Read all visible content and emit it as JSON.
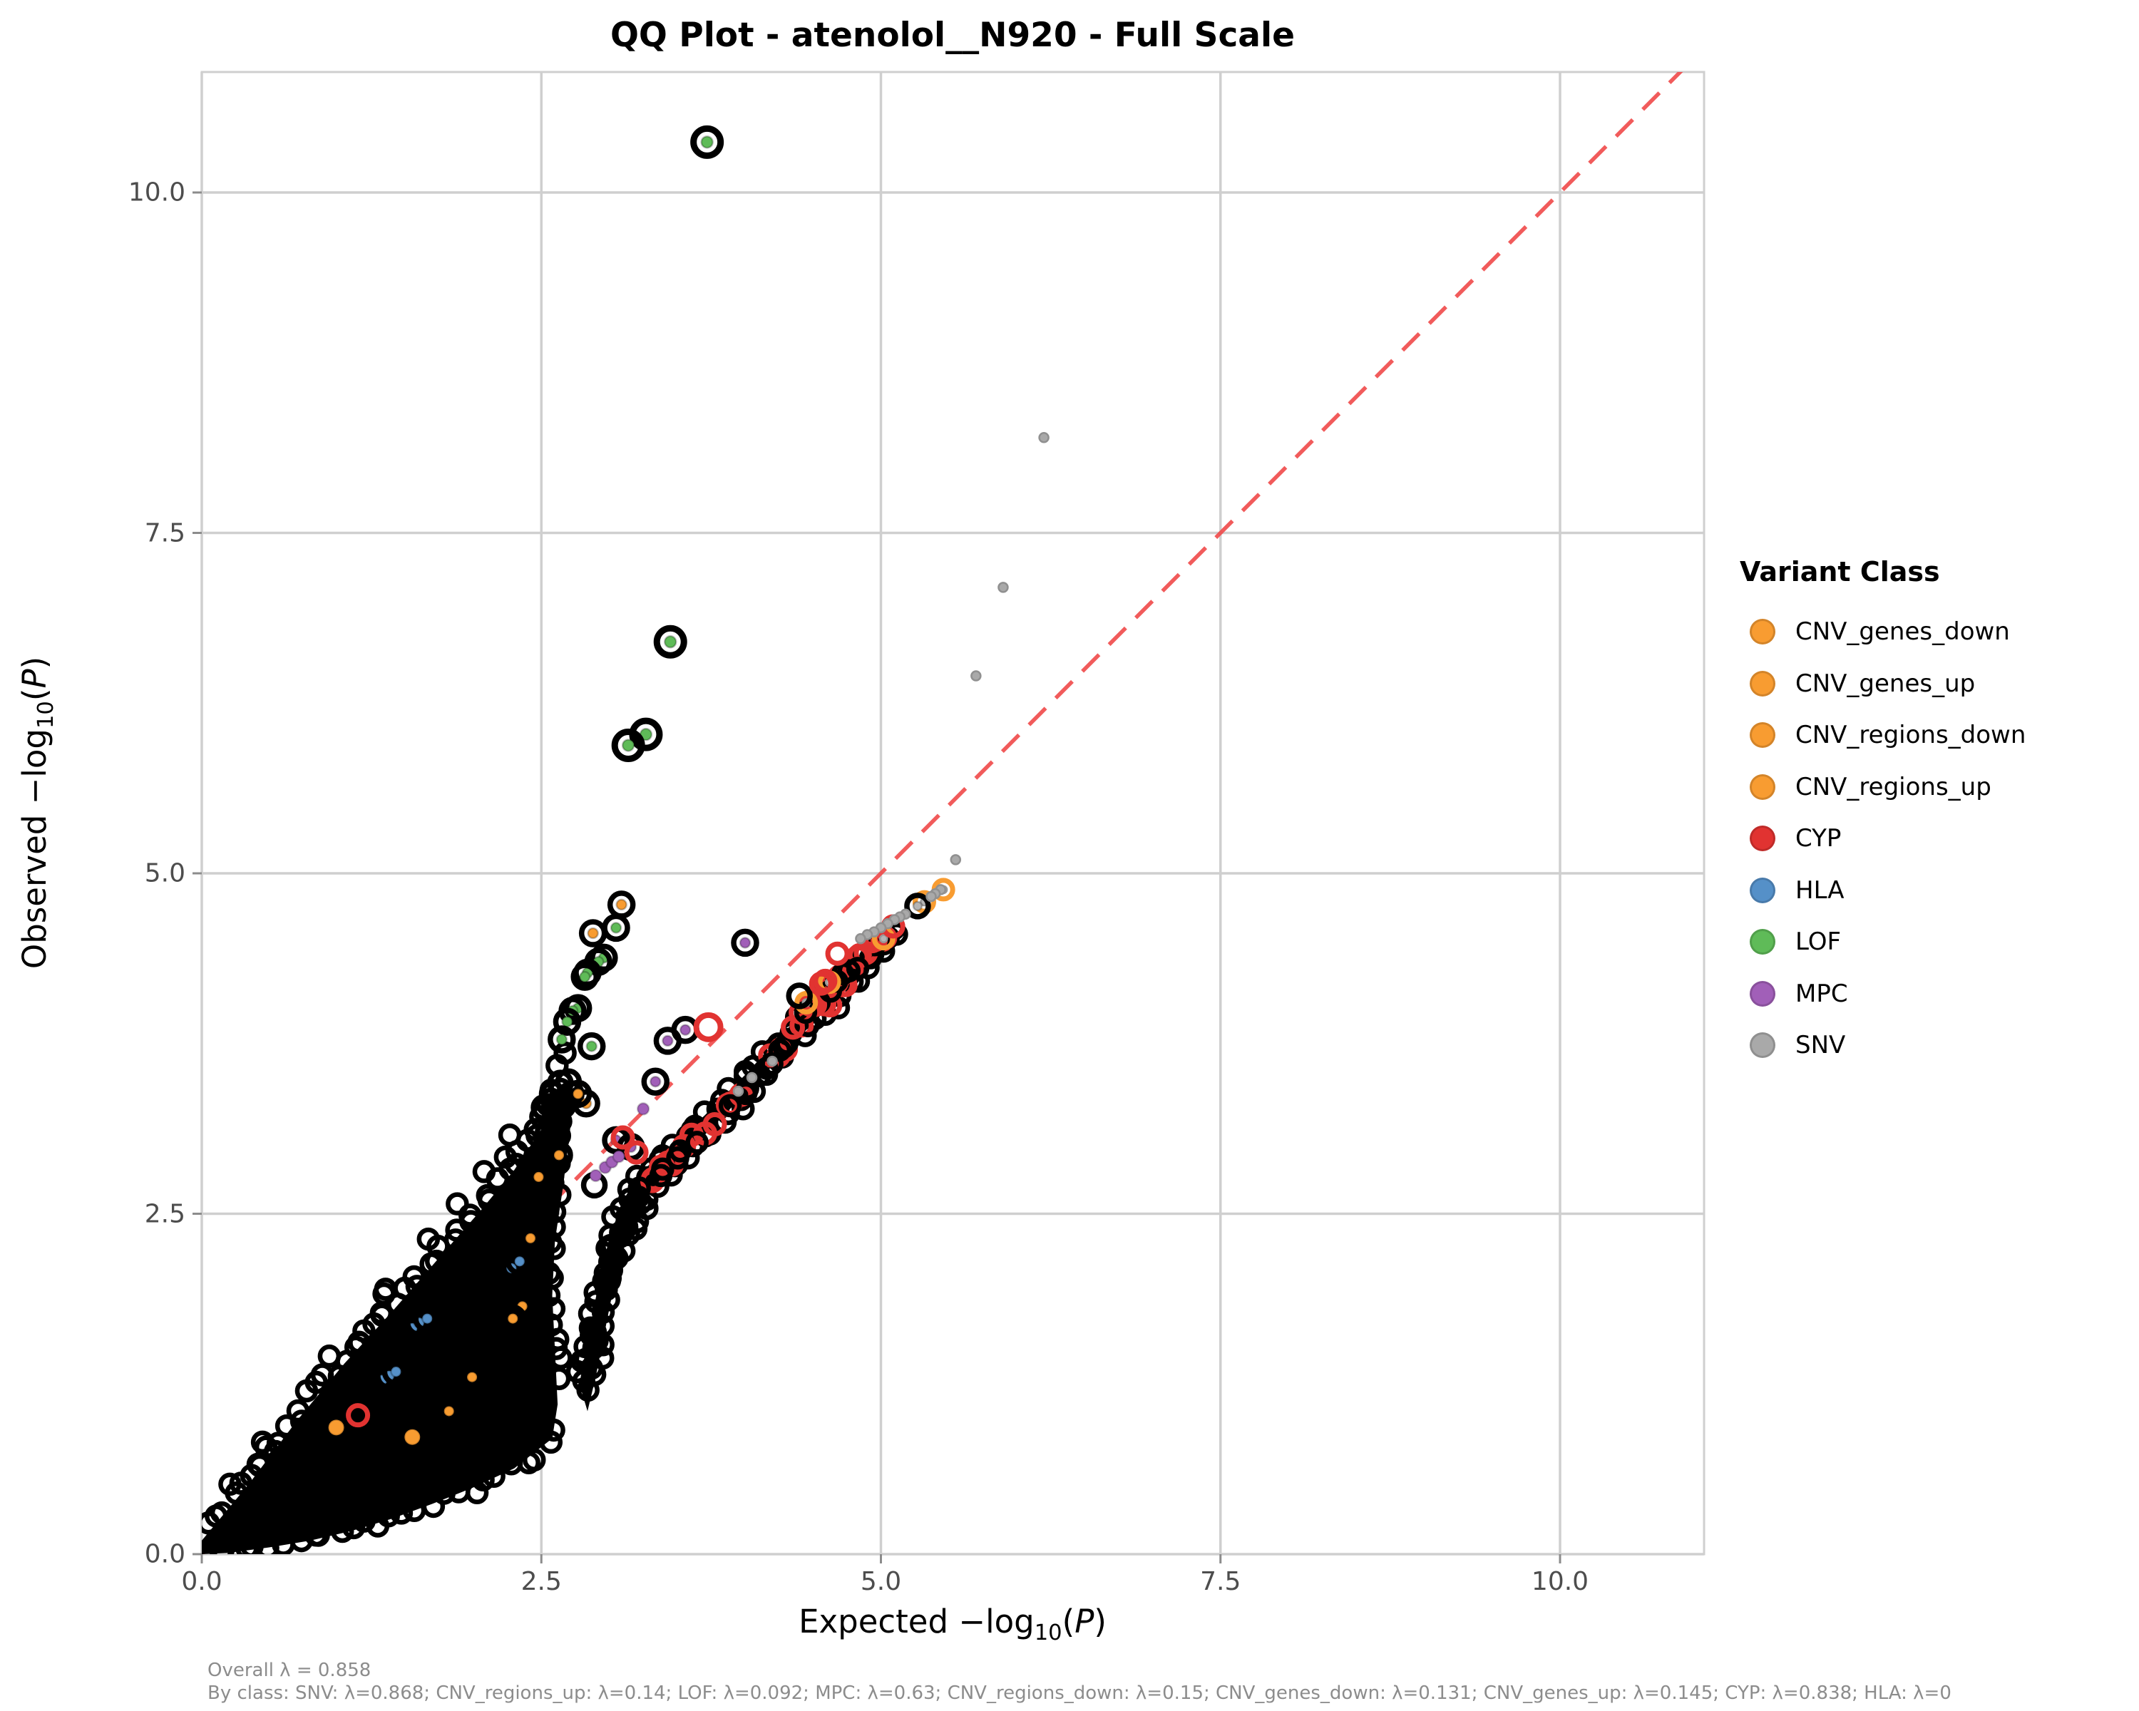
{
  "title": "QQ Plot - atenolol__N920 - Full Scale",
  "axes": {
    "xlabel_pre": "Expected ",
    "ylabel_pre": "Observed ",
    "log_word": "−log",
    "log_sub": "10",
    "paren_open": "(",
    "paren_var": "P",
    "paren_close": ")"
  },
  "legend": {
    "title": "Variant Class",
    "items": [
      {
        "label": "CNV_genes_down",
        "color": "#F89C31"
      },
      {
        "label": "CNV_genes_up",
        "color": "#F89C31"
      },
      {
        "label": "CNV_regions_down",
        "color": "#F89C31"
      },
      {
        "label": "CNV_regions_up",
        "color": "#F89C31"
      },
      {
        "label": "CYP",
        "color": "#E13331"
      },
      {
        "label": "HLA",
        "color": "#5590C8"
      },
      {
        "label": "LOF",
        "color": "#5FBB58"
      },
      {
        "label": "MPC",
        "color": "#A15FB8"
      },
      {
        "label": "SNV",
        "color": "#A9A9A9"
      }
    ]
  },
  "annotations": {
    "overall": "Overall λ = 0.858",
    "by_class": "By class: SNV: λ=0.868; CNV_regions_up: λ=0.14; LOF: λ=0.092; MPC: λ=0.63; CNV_regions_down: λ=0.15; CNV_genes_down: λ=0.131; CNV_genes_up: λ=0.145; CYP: λ=0.838; HLA: λ=0"
  },
  "chart_data": {
    "type": "scatter",
    "title": "QQ Plot - atenolol__N920 - Full Scale",
    "xlabel": "Expected -log10(P)",
    "ylabel": "Observed -log10(P)",
    "x_range": [
      0,
      11.06
    ],
    "y_range": [
      0,
      10.88
    ],
    "x_ticks": [
      0,
      2.5,
      5,
      7.5,
      10
    ],
    "y_ticks": [
      0,
      2.5,
      5,
      7.5,
      10
    ],
    "x_tick_labels": [
      "0.0",
      "2.5",
      "5.0",
      "7.5",
      "10.0"
    ],
    "y_tick_labels": [
      "0.0",
      "2.5",
      "5.0",
      "7.5",
      "10.0"
    ],
    "grid": true,
    "identity_line": {
      "slope": 1,
      "style": "dashed",
      "color": "#F04A4A"
    },
    "overall_lambda": 0.858,
    "lambda_by_class": {
      "SNV": 0.868,
      "CNV_regions_up": 0.14,
      "LOF": 0.092,
      "MPC": 0.63,
      "CNV_regions_down": 0.15,
      "CNV_genes_down": 0.131,
      "CNV_genes_up": 0.145,
      "CYP": 0.838,
      "HLA": null
    },
    "colors": {
      "CNV": "#F89C31",
      "CYP": "#E13331",
      "HLA": "#5590C8",
      "LOF": "#5FBB58",
      "MPC": "#A15FB8",
      "SNV": "#A9A9A9",
      "bulk": "#000000",
      "grid": "#CFCFCF",
      "diag": "#F04A4A"
    },
    "outliers": {
      "LOF_big": [
        [
          3.72,
          10.37
        ],
        [
          3.45,
          6.7
        ],
        [
          3.27,
          6.02
        ],
        [
          3.14,
          5.94
        ]
      ],
      "LOF_ring": [
        [
          3.05,
          4.6
        ],
        [
          2.96,
          4.38
        ],
        [
          2.92,
          4.35
        ],
        [
          2.84,
          4.27
        ],
        [
          2.82,
          4.24
        ],
        [
          2.77,
          4.01
        ],
        [
          2.73,
          3.99
        ],
        [
          2.69,
          3.91
        ],
        [
          2.65,
          3.78
        ],
        [
          2.87,
          3.73
        ]
      ],
      "CNV_ring_black": [
        [
          3.09,
          4.77
        ],
        [
          2.88,
          4.56
        ],
        [
          2.83,
          3.31
        ],
        [
          2.77,
          3.38
        ],
        [
          2.63,
          2.93
        ],
        [
          2.48,
          2.77
        ],
        [
          2.42,
          2.32
        ],
        [
          2.36,
          1.82
        ],
        [
          2.29,
          1.73
        ],
        [
          1.99,
          1.3
        ],
        [
          1.82,
          1.05
        ]
      ],
      "CNV_ring_open": [
        [
          5.46,
          4.88
        ],
        [
          5.32,
          4.79
        ],
        [
          4.45,
          4.05
        ],
        [
          4.62,
          4.2
        ],
        [
          5.02,
          4.52
        ]
      ],
      "CNV_dot": [
        [
          0.99,
          0.93
        ],
        [
          1.55,
          0.86
        ]
      ],
      "MPC_ring": [
        [
          4.0,
          4.49
        ],
        [
          3.56,
          3.85
        ],
        [
          3.43,
          3.77
        ],
        [
          3.34,
          3.47
        ],
        [
          3.05,
          3.04
        ],
        [
          3.16,
          2.99
        ]
      ],
      "MPC_dot": [
        [
          3.25,
          3.27
        ],
        [
          2.97,
          2.84
        ],
        [
          3.02,
          2.88
        ],
        [
          3.07,
          2.92
        ],
        [
          2.9,
          2.78
        ]
      ],
      "CYP_ring": [
        [
          3.73,
          3.87
        ],
        [
          5.09,
          4.61
        ],
        [
          3.1,
          3.06
        ],
        [
          3.2,
          2.95
        ],
        [
          4.68,
          4.41
        ],
        [
          4.59,
          4.21
        ],
        [
          4.56,
          4.19
        ],
        [
          1.15,
          1.02
        ]
      ],
      "CYP_hidden": [
        [
          2.35,
          2.6
        ],
        [
          2.4,
          2.42
        ],
        [
          2.43,
          2.1
        ]
      ],
      "HLA_ring": [
        [
          1.33,
          1.28
        ],
        [
          1.38,
          1.31
        ],
        [
          1.43,
          1.34
        ],
        [
          1.55,
          1.66
        ],
        [
          1.6,
          1.7
        ],
        [
          1.66,
          1.73
        ],
        [
          2.28,
          2.1
        ],
        [
          2.34,
          2.15
        ]
      ],
      "SNV_dot": [
        [
          6.2,
          8.2
        ],
        [
          5.9,
          7.1
        ],
        [
          5.7,
          6.45
        ],
        [
          5.55,
          5.1
        ],
        [
          5.44,
          4.88
        ],
        [
          5.4,
          4.85
        ],
        [
          5.37,
          4.83
        ],
        [
          5.18,
          4.7
        ],
        [
          5.14,
          4.68
        ],
        [
          5.1,
          4.66
        ],
        [
          5.05,
          4.63
        ],
        [
          5.0,
          4.6
        ],
        [
          4.95,
          4.57
        ],
        [
          4.9,
          4.55
        ],
        [
          4.85,
          4.52
        ],
        [
          4.2,
          3.62
        ],
        [
          4.05,
          3.5
        ],
        [
          3.95,
          3.4
        ]
      ],
      "black_ring_gray": [
        [
          5.27,
          4.76
        ]
      ],
      "black_ring": [
        [
          4.4,
          4.1
        ],
        [
          2.89,
          2.71
        ],
        [
          1.3,
          1.35
        ],
        [
          1.58,
          1.74
        ],
        [
          1.7,
          1.8
        ],
        [
          2.52,
          3.28
        ],
        [
          2.58,
          3.38
        ],
        [
          2.64,
          3.46
        ],
        [
          2.7,
          3.47
        ],
        [
          2.6,
          3.2
        ],
        [
          2.66,
          3.33
        ],
        [
          2.55,
          3.1
        ],
        [
          2.72,
          3.38
        ]
      ]
    },
    "bulk": {
      "cigar_polygon": [
        [
          0,
          0.1
        ],
        [
          0.35,
          0.52
        ],
        [
          0.7,
          0.98
        ],
        [
          1.05,
          1.4
        ],
        [
          1.4,
          1.78
        ],
        [
          1.75,
          2.18
        ],
        [
          2.05,
          2.52
        ],
        [
          2.3,
          2.82
        ],
        [
          2.5,
          3.12
        ],
        [
          2.62,
          3.38
        ],
        [
          2.68,
          3.48
        ],
        [
          2.73,
          3.36
        ],
        [
          2.71,
          3.1
        ],
        [
          2.66,
          2.7
        ],
        [
          2.6,
          2.3
        ],
        [
          2.58,
          1.9
        ],
        [
          2.6,
          1.5
        ],
        [
          2.62,
          1.1
        ],
        [
          2.58,
          0.85
        ],
        [
          2.3,
          0.63
        ],
        [
          2.0,
          0.49
        ],
        [
          1.7,
          0.37
        ],
        [
          1.4,
          0.26
        ],
        [
          1.1,
          0.17
        ],
        [
          0.8,
          0.1
        ],
        [
          0.5,
          0.05
        ],
        [
          0.2,
          0.01
        ],
        [
          0,
          0
        ]
      ],
      "trail_polygon": [
        [
          2.78,
          1.25
        ],
        [
          2.85,
          1.62
        ],
        [
          2.92,
          1.98
        ],
        [
          3.0,
          2.32
        ],
        [
          3.1,
          2.6
        ],
        [
          3.25,
          2.82
        ],
        [
          3.45,
          3.0
        ],
        [
          3.7,
          3.22
        ],
        [
          4.0,
          3.52
        ],
        [
          4.35,
          3.9
        ],
        [
          4.65,
          4.2
        ],
        [
          4.9,
          4.44
        ],
        [
          5.08,
          4.62
        ],
        [
          5.12,
          4.58
        ],
        [
          4.98,
          4.4
        ],
        [
          4.75,
          4.15
        ],
        [
          4.45,
          3.85
        ],
        [
          4.1,
          3.48
        ],
        [
          3.8,
          3.18
        ],
        [
          3.55,
          2.92
        ],
        [
          3.35,
          2.72
        ],
        [
          3.22,
          2.52
        ],
        [
          3.12,
          2.3
        ],
        [
          3.04,
          2.0
        ],
        [
          2.97,
          1.65
        ],
        [
          2.9,
          1.3
        ],
        [
          2.84,
          1.05
        ]
      ],
      "upper_edge": [
        [
          0.05,
          0.18
        ],
        [
          0.4,
          0.62
        ],
        [
          0.8,
          1.15
        ],
        [
          1.2,
          1.6
        ],
        [
          1.6,
          2.05
        ],
        [
          1.95,
          2.45
        ],
        [
          2.25,
          2.8
        ],
        [
          2.5,
          3.15
        ],
        [
          2.66,
          3.45
        ]
      ],
      "lower_edge": [
        [
          0.1,
          0.02
        ],
        [
          0.5,
          0.07
        ],
        [
          0.9,
          0.13
        ],
        [
          1.3,
          0.23
        ],
        [
          1.7,
          0.37
        ],
        [
          2.1,
          0.53
        ],
        [
          2.45,
          0.72
        ],
        [
          2.62,
          0.92
        ]
      ],
      "column_right": [
        [
          2.7,
          3.3
        ],
        [
          2.64,
          2.9
        ],
        [
          2.58,
          2.5
        ],
        [
          2.57,
          2.1
        ],
        [
          2.6,
          1.7
        ],
        [
          2.62,
          1.3
        ]
      ],
      "trail_top": [
        [
          2.8,
          1.35
        ],
        [
          2.9,
          1.85
        ],
        [
          3.0,
          2.3
        ],
        [
          3.12,
          2.62
        ],
        [
          3.3,
          2.85
        ],
        [
          3.55,
          3.05
        ],
        [
          3.85,
          3.35
        ],
        [
          4.2,
          3.72
        ],
        [
          4.55,
          4.1
        ],
        [
          4.85,
          4.38
        ],
        [
          5.07,
          4.6
        ]
      ],
      "trail_bottom": [
        [
          2.86,
          1.2
        ],
        [
          2.95,
          1.6
        ],
        [
          3.03,
          2.0
        ],
        [
          3.13,
          2.32
        ],
        [
          3.25,
          2.55
        ],
        [
          3.42,
          2.76
        ],
        [
          3.65,
          3.0
        ],
        [
          3.95,
          3.3
        ],
        [
          4.3,
          3.68
        ],
        [
          4.65,
          4.05
        ],
        [
          4.95,
          4.35
        ],
        [
          5.1,
          4.55
        ]
      ],
      "trail_center": [
        [
          2.82,
          1.3
        ],
        [
          2.92,
          1.75
        ],
        [
          3.02,
          2.15
        ],
        [
          3.12,
          2.45
        ],
        [
          3.28,
          2.7
        ],
        [
          3.5,
          2.92
        ],
        [
          3.75,
          3.15
        ],
        [
          4.05,
          3.45
        ],
        [
          4.4,
          3.85
        ],
        [
          4.7,
          4.18
        ],
        [
          4.95,
          4.45
        ],
        [
          5.09,
          4.6
        ]
      ]
    }
  }
}
